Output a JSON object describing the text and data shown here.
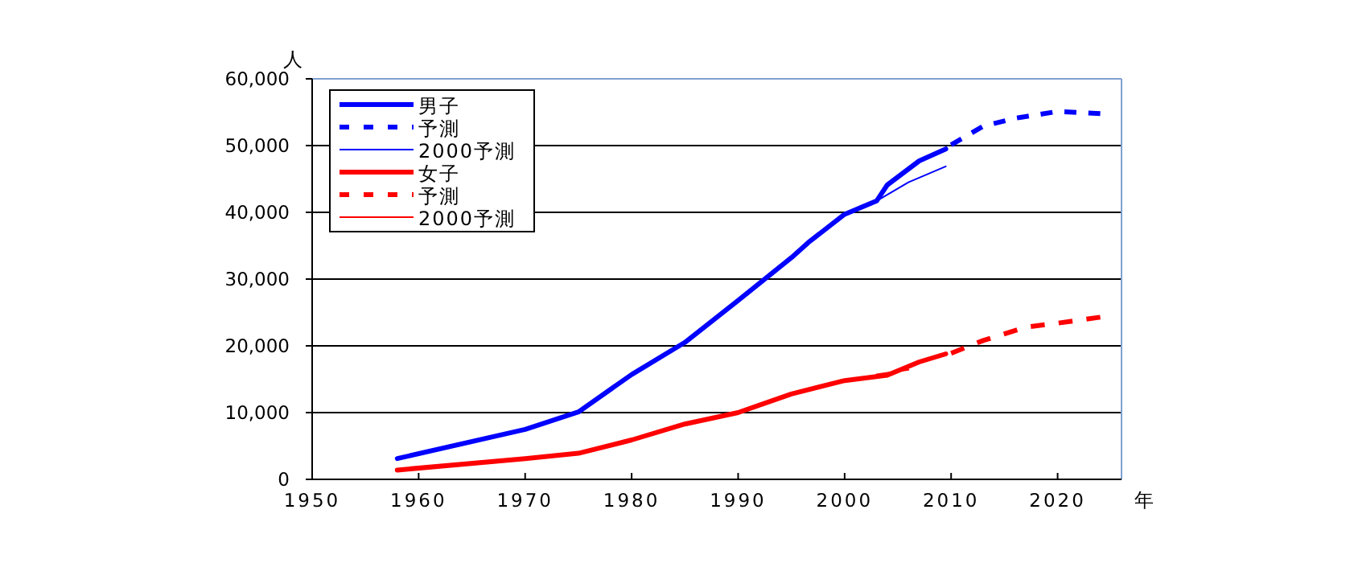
{
  "chart_data": {
    "type": "line",
    "xlabel": "年",
    "ylabel": "人",
    "xlim": [
      1950,
      2026
    ],
    "xticks": [
      1950,
      1960,
      1970,
      1980,
      1990,
      2000,
      2010,
      2020
    ],
    "ylim": [
      0,
      60000
    ],
    "yticks": [
      {
        "value": 0,
        "label": "0"
      },
      {
        "value": 10000,
        "label": "10,000"
      },
      {
        "value": 20000,
        "label": "20,000"
      },
      {
        "value": 30000,
        "label": "30,000"
      },
      {
        "value": 40000,
        "label": "40,000"
      },
      {
        "value": 50000,
        "label": "50,000"
      },
      {
        "value": 60000,
        "label": "60,000"
      }
    ],
    "grid": "y",
    "legend": "top left",
    "marker": "none",
    "series": [
      {
        "name": "男子",
        "color": "#0000ff",
        "line_style": "solid",
        "x": [
          1958,
          1970,
          1975,
          1980,
          1985,
          1990,
          1995,
          1996.6,
          2000,
          2003,
          2004,
          2007,
          2009.5
        ],
        "values": [
          3100,
          7500,
          10100,
          15700,
          20500,
          26800,
          33200,
          35500,
          39700,
          41700,
          44100,
          47700,
          49500
        ]
      },
      {
        "name": "予測",
        "color": "#0000ff",
        "line_style": "dashed",
        "x": [
          2010,
          2013,
          2016,
          2020,
          2024
        ],
        "values": [
          50100,
          52900,
          54100,
          55100,
          54800
        ]
      },
      {
        "name": "2000予測",
        "color": "#0000ff",
        "line_style": "solid",
        "x": [
          2003,
          2006,
          2009.5
        ],
        "values": [
          41700,
          44500,
          46900
        ]
      },
      {
        "name": "女子",
        "color": "#ff0000",
        "line_style": "solid",
        "x": [
          1958,
          1970,
          1975,
          1980,
          1985,
          1990,
          1995,
          2000,
          2004,
          2007,
          2009.5
        ],
        "values": [
          1400,
          3100,
          3900,
          5900,
          8300,
          10000,
          12800,
          14800,
          15600,
          17600,
          18800
        ]
      },
      {
        "name": "予測",
        "color": "#ff0000",
        "line_style": "dashed",
        "x": [
          2010,
          2013,
          2017,
          2020,
          2024
        ],
        "values": [
          18900,
          20800,
          22800,
          23400,
          24300
        ]
      },
      {
        "name": "2000予測",
        "color": "#ff0000",
        "line_style": "solid",
        "x": [
          2003,
          2006
        ],
        "values": [
          15700,
          16400
        ]
      }
    ]
  }
}
